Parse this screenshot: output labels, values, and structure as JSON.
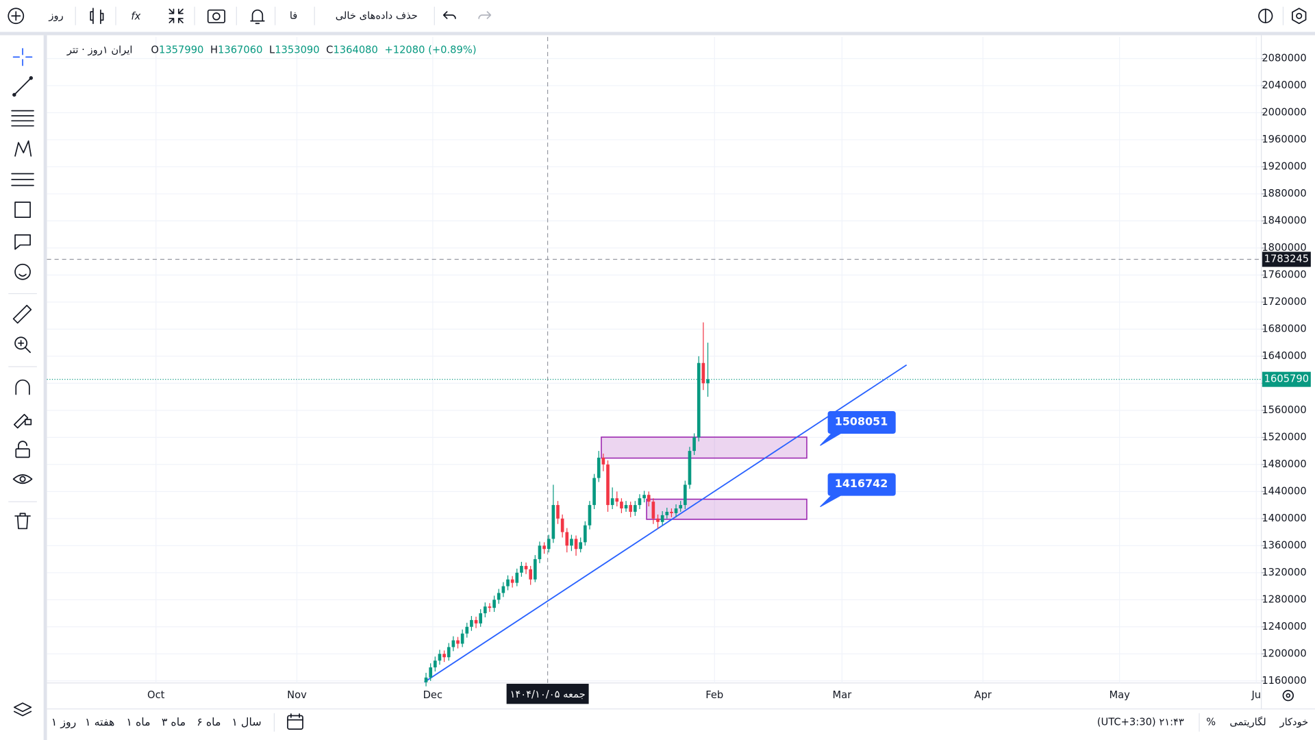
{
  "toolbar": {
    "interval": "روز",
    "language": "فا",
    "remove_empty": "حذف داده‌های خالی"
  },
  "legend": {
    "symbol": "ایران ۱روز · تتر",
    "open_label": "O",
    "open": 1357990,
    "high_label": "H",
    "high": 1367060,
    "low_label": "L",
    "low": 1353090,
    "close_label": "C",
    "close": 1364080,
    "change": "+12080 (+0.89%)"
  },
  "chart": {
    "ylim": [
      1157000,
      2112000
    ],
    "yticks": [
      1160000,
      1200000,
      1240000,
      1280000,
      1320000,
      1360000,
      1400000,
      1440000,
      1480000,
      1520000,
      1560000,
      1600000,
      1640000,
      1680000,
      1720000,
      1760000,
      1800000,
      1840000,
      1880000,
      1920000,
      1960000,
      2000000,
      2040000,
      2080000
    ],
    "xlabels": [
      "Oct",
      "Nov",
      "Dec",
      "Feb",
      "Mar",
      "Apr",
      "May",
      "Ju"
    ],
    "crosshair_price": 1783245,
    "last_price": 1605790,
    "crosshair_date": "جمعه ۱۴۰۴/۱۰/۰۵",
    "annotations": [
      1508051,
      1416742
    ],
    "candles": [
      [
        1158000,
        1172000,
        1152000,
        1165000
      ],
      [
        1165000,
        1186000,
        1160000,
        1180000
      ],
      [
        1180000,
        1196000,
        1174000,
        1190000
      ],
      [
        1190000,
        1206000,
        1184000,
        1200000
      ],
      [
        1200000,
        1205000,
        1188000,
        1195000
      ],
      [
        1195000,
        1216000,
        1190000,
        1210000
      ],
      [
        1210000,
        1226000,
        1204000,
        1220000
      ],
      [
        1220000,
        1225000,
        1208000,
        1215000
      ],
      [
        1215000,
        1236000,
        1210000,
        1230000
      ],
      [
        1230000,
        1246000,
        1224000,
        1240000
      ],
      [
        1240000,
        1256000,
        1234000,
        1250000
      ],
      [
        1250000,
        1255000,
        1238000,
        1245000
      ],
      [
        1245000,
        1266000,
        1240000,
        1260000
      ],
      [
        1260000,
        1276000,
        1254000,
        1270000
      ],
      [
        1270000,
        1275000,
        1262000,
        1268000
      ],
      [
        1268000,
        1286000,
        1262000,
        1280000
      ],
      [
        1280000,
        1296000,
        1274000,
        1290000
      ],
      [
        1290000,
        1306000,
        1284000,
        1300000
      ],
      [
        1300000,
        1316000,
        1294000,
        1310000
      ],
      [
        1310000,
        1315000,
        1298000,
        1305000
      ],
      [
        1305000,
        1326000,
        1300000,
        1320000
      ],
      [
        1320000,
        1336000,
        1314000,
        1330000
      ],
      [
        1330000,
        1335000,
        1318000,
        1325000
      ],
      [
        1325000,
        1330000,
        1302000,
        1310000
      ],
      [
        1310000,
        1346000,
        1306000,
        1340000
      ],
      [
        1340000,
        1366000,
        1334000,
        1360000
      ],
      [
        1360000,
        1365000,
        1348000,
        1355000
      ],
      [
        1355000,
        1376000,
        1350000,
        1370000
      ],
      [
        1370000,
        1450000,
        1364000,
        1420000
      ],
      [
        1420000,
        1426000,
        1392000,
        1400000
      ],
      [
        1400000,
        1406000,
        1372000,
        1380000
      ],
      [
        1380000,
        1386000,
        1350000,
        1360000
      ],
      [
        1360000,
        1376000,
        1352000,
        1370000
      ],
      [
        1370000,
        1375000,
        1345000,
        1355000
      ],
      [
        1355000,
        1372000,
        1350000,
        1365000
      ],
      [
        1365000,
        1396000,
        1360000,
        1390000
      ],
      [
        1390000,
        1426000,
        1384000,
        1420000
      ],
      [
        1420000,
        1466000,
        1414000,
        1460000
      ],
      [
        1460000,
        1500000,
        1454000,
        1490000
      ],
      [
        1490000,
        1496000,
        1470000,
        1480000
      ],
      [
        1480000,
        1486000,
        1410000,
        1420000
      ],
      [
        1420000,
        1446000,
        1414000,
        1430000
      ],
      [
        1430000,
        1440000,
        1418000,
        1425000
      ],
      [
        1425000,
        1430000,
        1408000,
        1415000
      ],
      [
        1415000,
        1426000,
        1410000,
        1420000
      ],
      [
        1420000,
        1425000,
        1402000,
        1410000
      ],
      [
        1410000,
        1426000,
        1404000,
        1420000
      ],
      [
        1420000,
        1436000,
        1414000,
        1430000
      ],
      [
        1430000,
        1441000,
        1424000,
        1435000
      ],
      [
        1435000,
        1440000,
        1418000,
        1425000
      ],
      [
        1425000,
        1430000,
        1392000,
        1400000
      ],
      [
        1400000,
        1406000,
        1385000,
        1395000
      ],
      [
        1395000,
        1411000,
        1390000,
        1405000
      ],
      [
        1405000,
        1416000,
        1400000,
        1410000
      ],
      [
        1410000,
        1415000,
        1402000,
        1408000
      ],
      [
        1408000,
        1421000,
        1402000,
        1415000
      ],
      [
        1415000,
        1426000,
        1410000,
        1420000
      ],
      [
        1420000,
        1456000,
        1414000,
        1450000
      ],
      [
        1450000,
        1506000,
        1444000,
        1500000
      ],
      [
        1500000,
        1526000,
        1494000,
        1520000
      ],
      [
        1520000,
        1640000,
        1514000,
        1630000
      ],
      [
        1630000,
        1690000,
        1590000,
        1600000
      ],
      [
        1600000,
        1660000,
        1580000,
        1605790
      ]
    ]
  },
  "bottom": {
    "ranges": [
      "سال ۱",
      "ماه ۶",
      "ماه ۳",
      "ماه ۱",
      "هفته ۱",
      "روز ۱"
    ],
    "time": "(UTC+3:30) ۲۱:۴۳",
    "percent": "%",
    "log": "لگاریتمی",
    "auto": "خودکار"
  }
}
